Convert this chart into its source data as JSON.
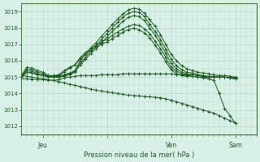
{
  "bg_color": "#d8f0e8",
  "grid_color": "#b8d8c8",
  "line_color": "#1a5c1a",
  "marker_color": "#1a5c1a",
  "xlabel": "Pression niveau de la mer( hPa )",
  "ylim": [
    1011.5,
    1019.5
  ],
  "yticks": [
    1012,
    1013,
    1014,
    1015,
    1016,
    1017,
    1018,
    1019
  ],
  "xlim": [
    0,
    132
  ],
  "xtick_positions": [
    12,
    48,
    84,
    120
  ],
  "xtick_labels": [
    "Jeu",
    "",
    "Ven",
    "Sam"
  ],
  "xminor_interval": 3,
  "yminor_interval": 0.5,
  "lines": [
    [
      0,
      1015.1,
      3,
      1015.6,
      6,
      1015.55,
      9,
      1015.4,
      12,
      1015.3,
      15,
      1015.1,
      18,
      1015.0,
      21,
      1015.05,
      24,
      1015.15,
      27,
      1015.25,
      30,
      1015.4,
      33,
      1016.0,
      36,
      1016.4,
      39,
      1016.8,
      42,
      1017.1,
      45,
      1017.5,
      48,
      1017.85,
      51,
      1018.2,
      54,
      1018.55,
      57,
      1018.85,
      60,
      1019.1,
      63,
      1019.2,
      66,
      1019.15,
      69,
      1018.9,
      72,
      1018.5,
      75,
      1018.1,
      78,
      1017.6,
      81,
      1017.0,
      84,
      1016.4,
      87,
      1016.0,
      90,
      1015.7,
      93,
      1015.5,
      96,
      1015.4,
      99,
      1015.3,
      102,
      1015.25,
      105,
      1015.2,
      108,
      1015.15,
      111,
      1015.1,
      114,
      1015.1,
      117,
      1015.05,
      120,
      1015.0
    ],
    [
      0,
      1015.05,
      3,
      1015.5,
      6,
      1015.45,
      9,
      1015.3,
      12,
      1015.2,
      15,
      1015.05,
      18,
      1015.0,
      21,
      1015.0,
      24,
      1015.1,
      27,
      1015.2,
      30,
      1015.35,
      33,
      1015.85,
      36,
      1016.2,
      39,
      1016.6,
      42,
      1016.9,
      45,
      1017.3,
      48,
      1017.65,
      51,
      1018.0,
      54,
      1018.35,
      57,
      1018.65,
      60,
      1018.9,
      63,
      1019.0,
      66,
      1018.95,
      69,
      1018.7,
      72,
      1018.2,
      75,
      1017.8,
      78,
      1017.3,
      81,
      1016.7,
      84,
      1016.1,
      87,
      1015.7,
      90,
      1015.45,
      93,
      1015.3,
      96,
      1015.25,
      99,
      1015.15,
      102,
      1015.1,
      105,
      1015.05,
      108,
      1015.05,
      111,
      1015.0,
      114,
      1015.0,
      117,
      1015.0,
      120,
      1014.95
    ],
    [
      0,
      1015.0,
      3,
      1015.4,
      6,
      1015.35,
      9,
      1015.2,
      12,
      1015.1,
      15,
      1015.0,
      18,
      1015.0,
      21,
      1015.0,
      24,
      1015.05,
      27,
      1015.15,
      30,
      1015.3,
      33,
      1015.75,
      36,
      1016.1,
      39,
      1016.45,
      42,
      1016.75,
      45,
      1017.1,
      48,
      1017.45,
      51,
      1017.8,
      54,
      1018.1,
      57,
      1018.4,
      60,
      1018.65,
      63,
      1018.75,
      66,
      1018.7,
      69,
      1018.45,
      72,
      1018.0,
      75,
      1017.55,
      78,
      1017.05,
      81,
      1016.45,
      84,
      1015.85,
      87,
      1015.5,
      90,
      1015.3,
      93,
      1015.2,
      96,
      1015.15,
      99,
      1015.1,
      102,
      1015.05,
      105,
      1015.0,
      108,
      1015.0,
      111,
      1015.0,
      114,
      1015.0,
      117,
      1014.95,
      120,
      1014.9
    ],
    [
      0,
      1015.0,
      3,
      1015.3,
      6,
      1015.25,
      9,
      1015.15,
      12,
      1015.1,
      15,
      1015.05,
      18,
      1015.05,
      21,
      1015.1,
      24,
      1015.3,
      27,
      1015.55,
      30,
      1015.75,
      33,
      1016.2,
      36,
      1016.5,
      39,
      1016.75,
      42,
      1016.95,
      45,
      1017.15,
      48,
      1017.3,
      51,
      1017.55,
      54,
      1017.75,
      57,
      1017.95,
      60,
      1018.1,
      63,
      1018.2,
      66,
      1018.15,
      69,
      1017.95,
      72,
      1017.65,
      75,
      1017.2,
      78,
      1016.75,
      81,
      1016.2,
      84,
      1015.6,
      87,
      1015.35,
      90,
      1015.2,
      93,
      1015.15,
      96,
      1015.15,
      99,
      1015.1,
      102,
      1015.05,
      105,
      1015.0,
      108,
      1015.0,
      111,
      1015.0,
      114,
      1015.0,
      117,
      1014.95,
      120,
      1014.95
    ],
    [
      0,
      1015.0,
      3,
      1015.3,
      6,
      1015.25,
      9,
      1015.15,
      12,
      1015.1,
      15,
      1015.1,
      18,
      1015.1,
      21,
      1015.15,
      24,
      1015.4,
      27,
      1015.6,
      30,
      1015.75,
      33,
      1016.1,
      36,
      1016.4,
      39,
      1016.65,
      42,
      1016.85,
      45,
      1017.0,
      48,
      1017.15,
      51,
      1017.35,
      54,
      1017.55,
      57,
      1017.75,
      60,
      1017.9,
      63,
      1018.0,
      66,
      1017.9,
      69,
      1017.7,
      72,
      1017.4,
      75,
      1016.95,
      78,
      1016.5,
      81,
      1015.95,
      84,
      1015.45,
      87,
      1015.2,
      90,
      1015.1,
      93,
      1015.05,
      96,
      1015.05,
      99,
      1015.0,
      102,
      1015.0,
      105,
      1015.0,
      108,
      1015.0,
      111,
      1015.0,
      114,
      1015.0,
      117,
      1014.95,
      120,
      1014.9
    ],
    [
      0,
      1014.9,
      3,
      1014.9,
      6,
      1014.88,
      9,
      1014.86,
      12,
      1014.84,
      15,
      1014.82,
      18,
      1014.8,
      21,
      1014.85,
      24,
      1014.95,
      27,
      1015.0,
      30,
      1015.05,
      33,
      1015.1,
      36,
      1015.1,
      39,
      1015.1,
      42,
      1015.1,
      45,
      1015.15,
      48,
      1015.15,
      51,
      1015.15,
      54,
      1015.15,
      57,
      1015.2,
      60,
      1015.2,
      63,
      1015.2,
      66,
      1015.2,
      69,
      1015.2,
      72,
      1015.2,
      75,
      1015.2,
      78,
      1015.2,
      81,
      1015.2,
      84,
      1015.2,
      87,
      1015.15,
      90,
      1015.15,
      93,
      1015.1,
      96,
      1015.05,
      99,
      1015.0,
      102,
      1014.95,
      105,
      1014.9,
      108,
      1014.8,
      111,
      1014.0,
      114,
      1013.1,
      117,
      1012.65,
      120,
      1012.2
    ],
    [
      0,
      1015.1,
      3,
      1015.05,
      6,
      1015.0,
      9,
      1014.95,
      12,
      1014.9,
      15,
      1014.85,
      18,
      1014.8,
      21,
      1014.72,
      24,
      1014.65,
      27,
      1014.57,
      30,
      1014.5,
      33,
      1014.42,
      36,
      1014.35,
      39,
      1014.27,
      42,
      1014.2,
      45,
      1014.15,
      48,
      1014.1,
      51,
      1014.05,
      54,
      1014.0,
      57,
      1013.95,
      60,
      1013.9,
      63,
      1013.87,
      66,
      1013.85,
      69,
      1013.82,
      72,
      1013.8,
      75,
      1013.77,
      78,
      1013.75,
      81,
      1013.67,
      84,
      1013.6,
      87,
      1013.5,
      90,
      1013.4,
      93,
      1013.3,
      96,
      1013.2,
      99,
      1013.1,
      102,
      1013.0,
      105,
      1012.9,
      108,
      1012.8,
      111,
      1012.65,
      114,
      1012.5,
      117,
      1012.35,
      120,
      1012.2
    ]
  ]
}
